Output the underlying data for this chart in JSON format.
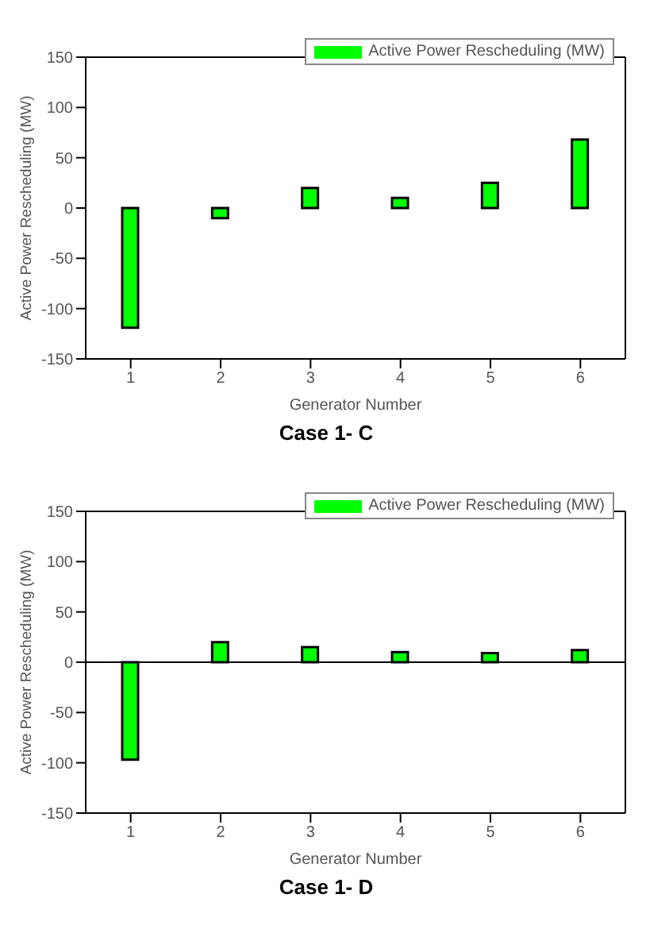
{
  "chart_data": [
    {
      "type": "bar",
      "categories": [
        "1",
        "2",
        "3",
        "4",
        "5",
        "6"
      ],
      "series": [
        {
          "name": "Active Power Rescheduling (MW)",
          "color": "#00ff00",
          "values": [
            -119,
            -10,
            20,
            10,
            25,
            68
          ]
        }
      ],
      "xlabel": "Generator Number",
      "ylabel": "Active Power Rescheduling (MW)",
      "ylim": [
        -150,
        150
      ],
      "yticks": [
        -150,
        -100,
        -50,
        0,
        50,
        100,
        150
      ],
      "legend": "top right",
      "grid": false,
      "annotations": [
        "Case 1- C"
      ]
    },
    {
      "type": "bar",
      "categories": [
        "1",
        "2",
        "3",
        "4",
        "5",
        "6"
      ],
      "series": [
        {
          "name": "Active Power Rescheduling (MW)",
          "color": "#00ff00",
          "values": [
            -97,
            20,
            15,
            10,
            9,
            12
          ]
        }
      ],
      "xlabel": "Generator Number",
      "ylabel": "Active Power Rescheduling (MW)",
      "ylim": [
        -150,
        150
      ],
      "yticks": [
        -150,
        -100,
        -50,
        0,
        50,
        100,
        150
      ],
      "legend": "top right",
      "grid": false,
      "ref_lines": [
        {
          "axis": "y",
          "value": 0,
          "color": "#000000"
        }
      ],
      "annotations": [
        "Case 1- D"
      ]
    }
  ]
}
